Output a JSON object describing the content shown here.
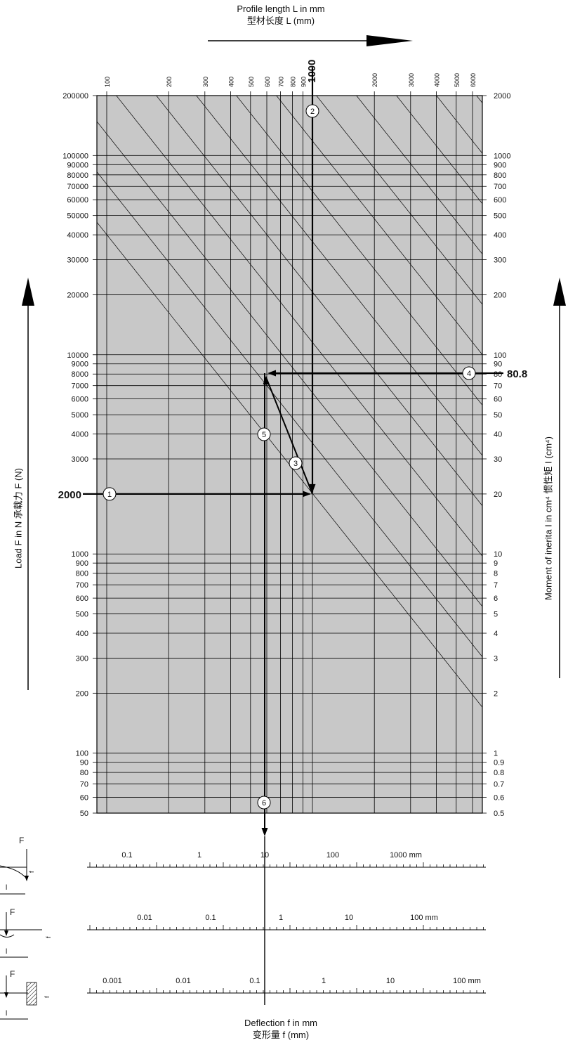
{
  "chart_data": {
    "type": "nomogram",
    "top_axis": {
      "label_en": "Profile length L in mm",
      "label_zh": "型材长度 L (mm)",
      "ticks": [
        100,
        200,
        300,
        400,
        500,
        600,
        700,
        800,
        900,
        1000,
        2000,
        3000,
        4000,
        5000,
        6000
      ],
      "highlight": 1000
    },
    "left_axis": {
      "label": "Load F in N   承载力 F (N)",
      "ticks": [
        200000,
        100000,
        90000,
        80000,
        70000,
        60000,
        50000,
        40000,
        30000,
        20000,
        10000,
        9000,
        8000,
        7000,
        6000,
        5000,
        4000,
        3000,
        2000,
        1000,
        900,
        800,
        700,
        600,
        500,
        400,
        300,
        200,
        100,
        90,
        80,
        70,
        60,
        50
      ],
      "highlight": 2000
    },
    "right_axis": {
      "label": "Moment of inerita I in cm⁴   惯性矩 I (cm⁴)",
      "ticks": [
        "2000",
        "1000",
        "900",
        "800",
        "700",
        "600",
        "500",
        "400",
        "300",
        "200",
        "100",
        "90",
        "80",
        "70",
        "60",
        "50",
        "40",
        "30",
        "20",
        "10",
        "9",
        "8",
        "7",
        "6",
        "5",
        "4",
        "3",
        "2",
        "1",
        "0.9",
        "0.8",
        "0.7",
        "0.6",
        "0.5"
      ],
      "highlight": "80.8"
    },
    "steps": [
      "1",
      "2",
      "3",
      "4",
      "5",
      "6"
    ],
    "deflection_scales": [
      {
        "case": "cantilever",
        "labels": [
          "0.1",
          "1",
          "10",
          "100",
          "1000  mm"
        ]
      },
      {
        "case": "simply-supported",
        "labels": [
          "0.01",
          "0.1",
          "1",
          "10",
          "100  mm"
        ]
      },
      {
        "case": "fixed-fixed",
        "labels": [
          "0.001",
          "0.01",
          "0.1",
          "1",
          "10",
          "100  mm"
        ]
      }
    ],
    "bottom_axis": {
      "label_en": "Deflection f in mm",
      "label_zh": "变形量  f (mm)"
    },
    "diagram_labels": {
      "force": "F",
      "deflection": "f",
      "length": "l"
    },
    "colors": {
      "grid_bg": "#c8c8c8",
      "line": "#000000"
    }
  }
}
